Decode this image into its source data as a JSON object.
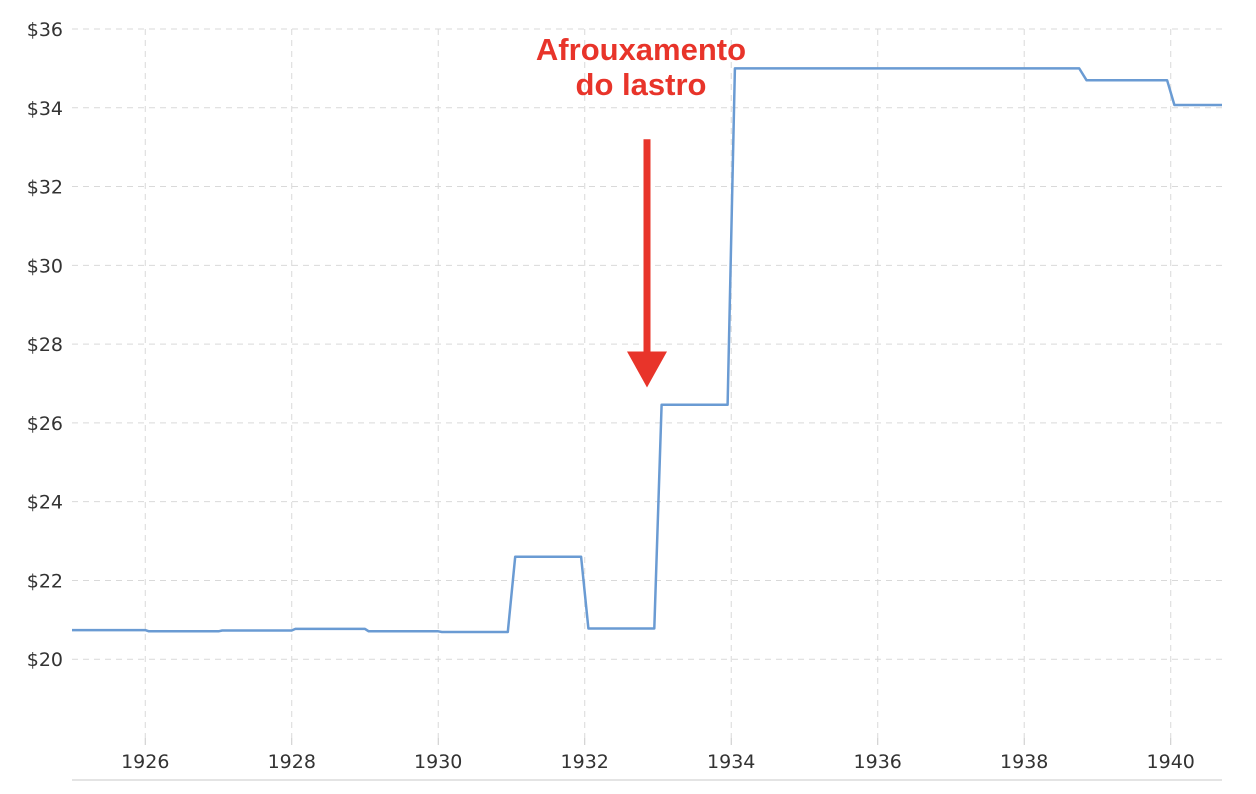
{
  "chart_data": {
    "type": "line",
    "title": "",
    "xlabel": "",
    "ylabel": "",
    "xlim": [
      1925.0,
      1940.7
    ],
    "ylim": [
      18.0,
      36.0
    ],
    "grid": true,
    "x_ticks": [
      1926,
      1928,
      1930,
      1932,
      1934,
      1936,
      1938,
      1940
    ],
    "x_tick_labels": [
      "1926",
      "1928",
      "1930",
      "1932",
      "1934",
      "1936",
      "1938",
      "1940"
    ],
    "y_ticks": [
      20,
      22,
      24,
      26,
      28,
      30,
      32,
      34,
      36
    ],
    "y_tick_labels": [
      "$20",
      "$22",
      "$24",
      "$26",
      "$28",
      "$30",
      "$32",
      "$34",
      "$36"
    ],
    "series": [
      {
        "color": "#6a9bd3",
        "points": [
          [
            1925.0,
            20.74
          ],
          [
            1926.0,
            20.74
          ],
          [
            1926.05,
            20.71
          ],
          [
            1927.0,
            20.71
          ],
          [
            1927.05,
            20.73
          ],
          [
            1928.0,
            20.73
          ],
          [
            1928.05,
            20.77
          ],
          [
            1929.0,
            20.77
          ],
          [
            1929.05,
            20.71
          ],
          [
            1930.0,
            20.71
          ],
          [
            1930.05,
            20.69
          ],
          [
            1930.95,
            20.69
          ],
          [
            1931.05,
            22.6
          ],
          [
            1931.95,
            22.6
          ],
          [
            1932.05,
            20.78
          ],
          [
            1932.95,
            20.78
          ],
          [
            1933.05,
            26.46
          ],
          [
            1933.95,
            26.46
          ],
          [
            1934.05,
            35.0
          ],
          [
            1938.75,
            35.0
          ],
          [
            1938.85,
            34.7
          ],
          [
            1939.95,
            34.7
          ],
          [
            1940.05,
            34.07
          ],
          [
            1940.7,
            34.07
          ]
        ]
      }
    ],
    "annotations": [
      {
        "lines": [
          "Afrouxamento",
          "do lastro"
        ],
        "color": "#e8342a",
        "arrow_target": [
          1932.85,
          26.9
        ],
        "arrow_start_y": 33.2
      }
    ]
  }
}
